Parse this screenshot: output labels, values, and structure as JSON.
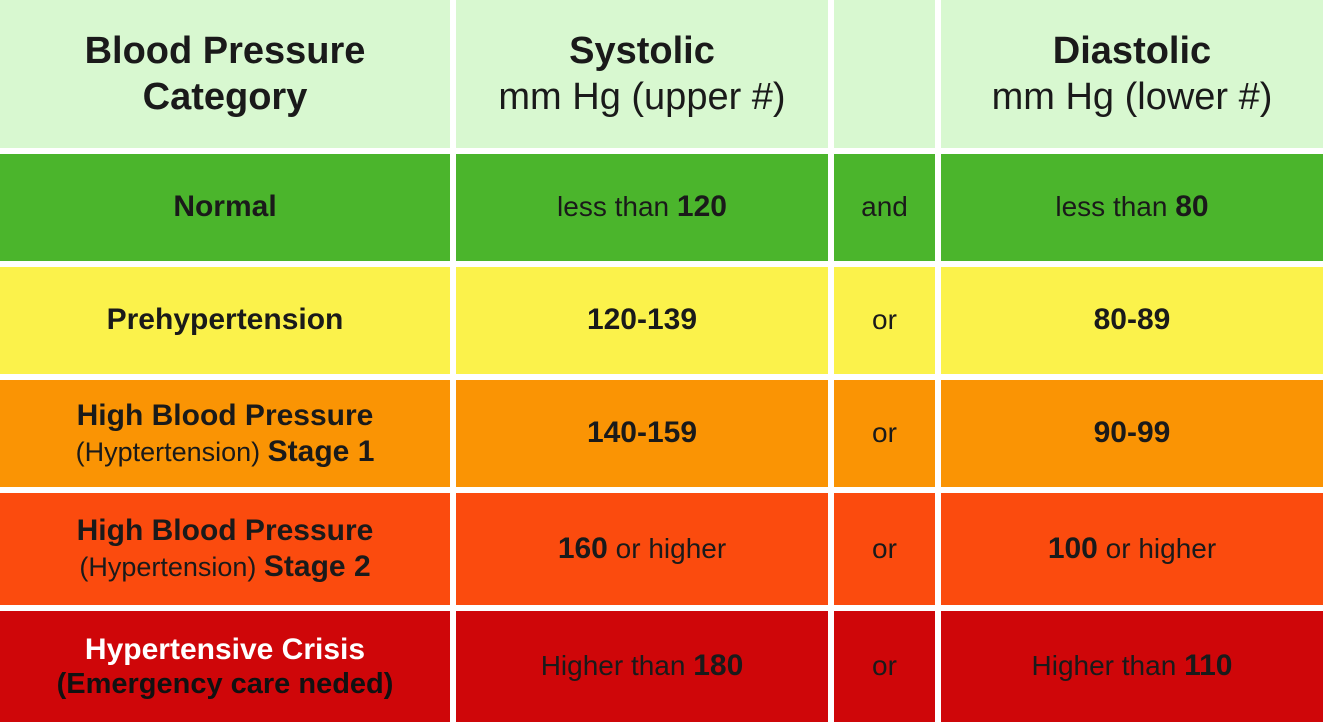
{
  "colors": {
    "header_bg": "#d8f8d0",
    "normal_bg": "#4bb52c",
    "prehypertension_bg": "#fbf24b",
    "stage1_bg": "#fa9404",
    "stage2_bg": "#fb4b0e",
    "crisis_bg": "#cf0609",
    "separator": "#ffffff",
    "text_dark": "#1a1a1a",
    "crisis_title_text": "#ffffff"
  },
  "header": {
    "category": {
      "line1": "Blood Pressure",
      "line2": "Category"
    },
    "systolic": {
      "line1": "Systolic",
      "line2": "mm Hg (upper #)"
    },
    "conjunction": "",
    "diastolic": {
      "line1": "Diastolic",
      "line2": "mm Hg (lower #)"
    }
  },
  "rows": [
    {
      "category": {
        "line1": "Normal",
        "line2_regular": "",
        "line2_bold": ""
      },
      "systolic": {
        "prefix": "less than ",
        "value": "120",
        "suffix": ""
      },
      "conjunction": "and",
      "diastolic": {
        "prefix": "less than ",
        "value": "80",
        "suffix": ""
      }
    },
    {
      "category": {
        "line1": "Prehypertension",
        "line2_regular": "",
        "line2_bold": ""
      },
      "systolic": {
        "prefix": "",
        "value": "120-139",
        "suffix": ""
      },
      "conjunction": "or",
      "diastolic": {
        "prefix": "",
        "value": "80-89",
        "suffix": ""
      }
    },
    {
      "category": {
        "line1": "High Blood Pressure",
        "line2_regular": "(Hyptertension) ",
        "line2_bold": "Stage 1"
      },
      "systolic": {
        "prefix": "",
        "value": "140-159",
        "suffix": ""
      },
      "conjunction": "or",
      "diastolic": {
        "prefix": "",
        "value": "90-99",
        "suffix": ""
      }
    },
    {
      "category": {
        "line1": "High Blood Pressure",
        "line2_regular": "(Hypertension) ",
        "line2_bold": "Stage 2"
      },
      "systolic": {
        "prefix": "",
        "value": "160",
        "suffix": " or higher"
      },
      "conjunction": "or",
      "diastolic": {
        "prefix": "",
        "value": "100",
        "suffix": " or higher"
      }
    },
    {
      "category": {
        "line1": "Hypertensive Crisis",
        "line2_regular": "",
        "line2_bold": "(Emergency care neded)"
      },
      "systolic": {
        "prefix": "Higher than ",
        "value": "180",
        "suffix": ""
      },
      "conjunction": "or",
      "diastolic": {
        "prefix": "Higher than ",
        "value": "110",
        "suffix": ""
      }
    }
  ],
  "chart_data": {
    "type": "table",
    "title": "Blood Pressure Category",
    "columns": [
      "Blood Pressure Category",
      "Systolic mm Hg (upper #)",
      "",
      "Diastolic mm Hg (lower #)"
    ],
    "rows": [
      [
        "Normal",
        "less than 120",
        "and",
        "less than 80"
      ],
      [
        "Prehypertension",
        "120-139",
        "or",
        "80-89"
      ],
      [
        "High Blood Pressure (Hyptertension) Stage 1",
        "140-159",
        "or",
        "90-99"
      ],
      [
        "High Blood Pressure (Hypertension) Stage 2",
        "160 or higher",
        "or",
        "100 or higher"
      ],
      [
        "Hypertensive Crisis (Emergency care neded)",
        "Higher than 180",
        "or",
        "Higher than 110"
      ]
    ],
    "row_colors": [
      "#4bb52c",
      "#fbf24b",
      "#fa9404",
      "#fb4b0e",
      "#cf0609"
    ],
    "systolic_thresholds": [
      120,
      139,
      159,
      160,
      180
    ],
    "diastolic_thresholds": [
      80,
      89,
      99,
      100,
      110
    ]
  }
}
